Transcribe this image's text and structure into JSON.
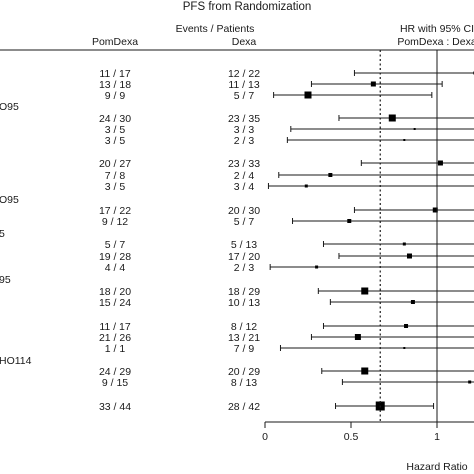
{
  "chart_data": {
    "type": "forest",
    "title": "PFS from Randomization",
    "column_headers": {
      "events_group": "Events / Patients",
      "arm_a": "PomDexa",
      "arm_b": "Dexa",
      "hr_line1": "HR with 95% CI",
      "hr_line2": "PomDexa : Dexa"
    },
    "xlabel": "Hazard Ratio",
    "x_ticks": [
      "0",
      "0.5",
      "1"
    ],
    "xlim": [
      0,
      1.22
    ],
    "reference_line": 1,
    "overall_line": 0.67,
    "partial_labels": [
      "O95",
      "O95",
      "5",
      "95",
      "HO114"
    ],
    "rows": [
      {
        "pom": "11 / 17",
        "dexa": "12 / 22",
        "hr": 1.22,
        "lo": 0.52,
        "hi": 1.22,
        "w": 3
      },
      {
        "pom": "13 / 18",
        "dexa": "11 / 13",
        "hr": 0.63,
        "lo": 0.27,
        "hi": 1.03,
        "w": 5
      },
      {
        "pom": "9 / 9",
        "dexa": "5 / 7",
        "hr": 0.25,
        "lo": 0.05,
        "hi": 0.97,
        "w": 7
      },
      {
        "pom": "24 / 30",
        "dexa": "23 / 35",
        "hr": 0.74,
        "lo": 0.43,
        "hi": 1.22,
        "w": 7
      },
      {
        "pom": "3 / 5",
        "dexa": "3 / 3",
        "hr": 0.87,
        "lo": 0.15,
        "hi": 1.22,
        "w": 2
      },
      {
        "pom": "3 / 5",
        "dexa": "2 / 3",
        "hr": 0.81,
        "lo": 0.13,
        "hi": 1.22,
        "w": 2
      },
      {
        "pom": "20 / 27",
        "dexa": "23 / 33",
        "hr": 1.02,
        "lo": 0.56,
        "hi": 1.22,
        "w": 5
      },
      {
        "pom": "7 / 8",
        "dexa": "2 / 4",
        "hr": 0.38,
        "lo": 0.08,
        "hi": 1.22,
        "w": 4
      },
      {
        "pom": "3 / 5",
        "dexa": "3 / 4",
        "hr": 0.24,
        "lo": 0.02,
        "hi": 1.22,
        "w": 3
      },
      {
        "pom": "17 / 22",
        "dexa": "20 / 30",
        "hr": 0.99,
        "lo": 0.52,
        "hi": 1.22,
        "w": 5
      },
      {
        "pom": "9 / 12",
        "dexa": "5 / 7",
        "hr": 0.49,
        "lo": 0.16,
        "hi": 1.22,
        "w": 4
      },
      {
        "pom": "5 / 7",
        "dexa": "5 / 13",
        "hr": 0.81,
        "lo": 0.34,
        "hi": 1.22,
        "w": 3
      },
      {
        "pom": "19 / 28",
        "dexa": "17 / 20",
        "hr": 0.84,
        "lo": 0.43,
        "hi": 1.22,
        "w": 5
      },
      {
        "pom": "4 / 4",
        "dexa": "2 / 3",
        "hr": 0.3,
        "lo": 0.03,
        "hi": 1.22,
        "w": 3
      },
      {
        "pom": "18 / 20",
        "dexa": "18 / 29",
        "hr": 0.58,
        "lo": 0.31,
        "hi": 1.22,
        "w": 7
      },
      {
        "pom": "15 / 24",
        "dexa": "10 / 13",
        "hr": 0.86,
        "lo": 0.38,
        "hi": 1.22,
        "w": 4
      },
      {
        "pom": "11 / 17",
        "dexa": "8 / 12",
        "hr": 0.82,
        "lo": 0.34,
        "hi": 1.22,
        "w": 4
      },
      {
        "pom": "21 / 26",
        "dexa": "13 / 21",
        "hr": 0.54,
        "lo": 0.27,
        "hi": 1.22,
        "w": 6
      },
      {
        "pom": "1 / 1",
        "dexa": "7 / 9",
        "hr": 0.81,
        "lo": 0.09,
        "hi": 1.22,
        "w": 2
      },
      {
        "pom": "24 / 29",
        "dexa": "20 / 29",
        "hr": 0.58,
        "lo": 0.33,
        "hi": 1.22,
        "w": 7
      },
      {
        "pom": "9 / 15",
        "dexa": "8 / 13",
        "hr": 1.19,
        "lo": 0.45,
        "hi": 1.22,
        "w": 3
      },
      {
        "pom": "33 / 44",
        "dexa": "28 / 42",
        "hr": 0.67,
        "lo": 0.41,
        "hi": 0.98,
        "w": 9
      }
    ]
  }
}
